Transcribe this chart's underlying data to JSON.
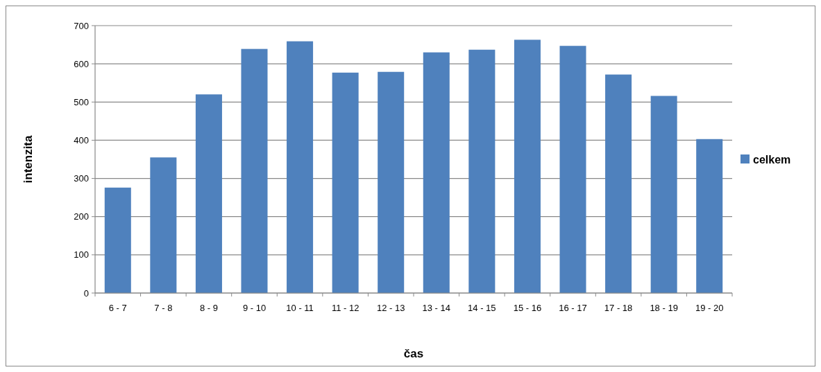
{
  "chart_data": {
    "type": "bar",
    "xlabel": "čas",
    "ylabel": "intenzita",
    "categories": [
      "6 - 7",
      "7 - 8",
      "8 - 9",
      "9 - 10",
      "10 - 11",
      "11 - 12",
      "12 - 13",
      "13 - 14",
      "14 - 15",
      "15 - 16",
      "16 - 17",
      "17 - 18",
      "18 - 19",
      "19 - 20"
    ],
    "series": [
      {
        "name": "celkem",
        "color": "#4f81bd",
        "values": [
          276,
          355,
          520,
          639,
          659,
          577,
          579,
          630,
          637,
          663,
          647,
          572,
          516,
          403
        ]
      }
    ],
    "ylim": [
      0,
      700
    ],
    "yticks": [
      0,
      100,
      200,
      300,
      400,
      500,
      600,
      700
    ],
    "grid": "y",
    "legend": "right"
  }
}
